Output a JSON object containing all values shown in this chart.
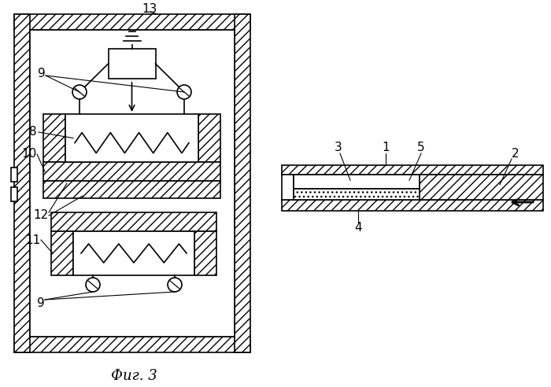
{
  "bg_color": "#ffffff",
  "line_color": "#000000",
  "fig_label": "Фиг. 3"
}
